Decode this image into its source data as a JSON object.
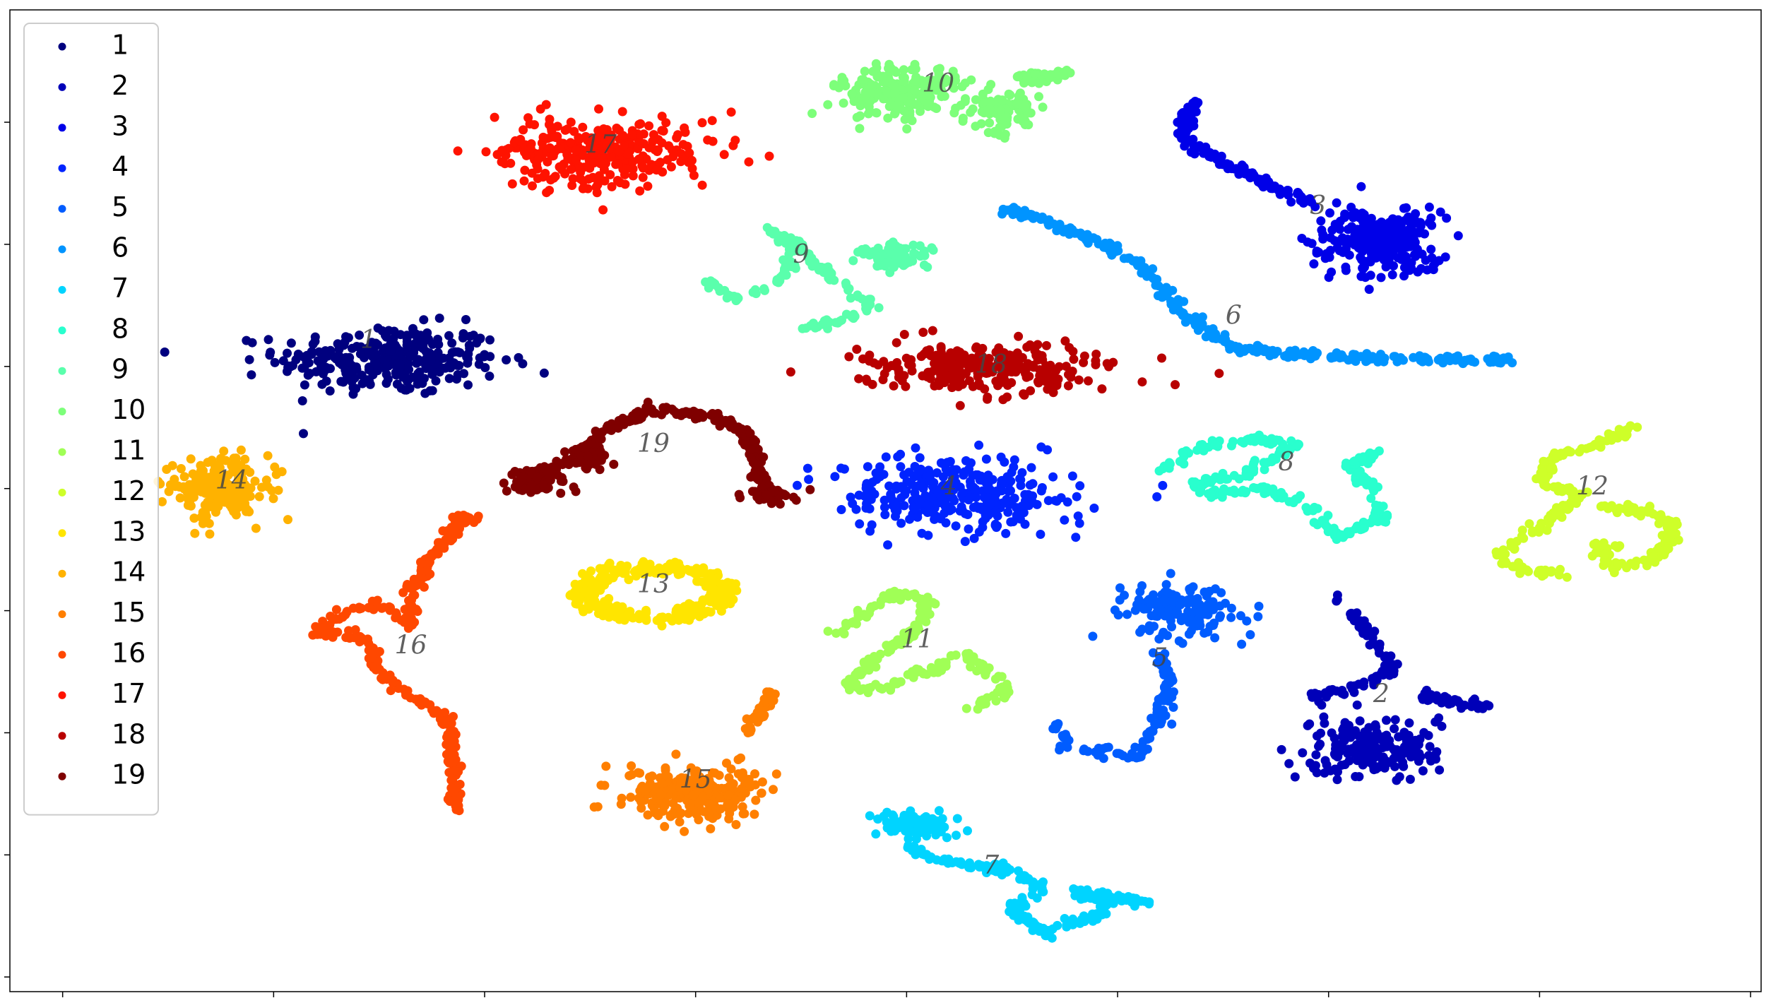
{
  "chart_data": {
    "type": "scatter",
    "title": "",
    "xlabel": "",
    "ylabel": "",
    "xlim": [
      -2.5,
      80.5
    ],
    "ylim": [
      -1.2,
      79.2
    ],
    "grid": false,
    "legend_position": "top-left",
    "x_tick_values": [
      0,
      10,
      20,
      30,
      40,
      50,
      60,
      70,
      80
    ],
    "y_tick_values": [
      0,
      10,
      20,
      30,
      40,
      50,
      60,
      70
    ],
    "series": [
      {
        "name": "1",
        "color": "#00007f",
        "label_x": 14.5,
        "label_y": 52.0,
        "clusters": [
          {
            "type": "blob",
            "center": [
              15.5,
              50.5
            ],
            "spread": [
              4.8,
              2.6
            ],
            "n": 300
          }
        ]
      },
      {
        "name": "2",
        "color": "#0000b8",
        "label_x": 62.5,
        "label_y": 23.0,
        "clusters": [
          {
            "type": "path",
            "points": [
              [
                60.5,
                31
              ],
              [
                62,
                28
              ],
              [
                63,
                25
              ],
              [
                61,
                23.5
              ],
              [
                59,
                23
              ]
            ],
            "n": 90
          },
          {
            "type": "blob",
            "center": [
              62,
              18.8
            ],
            "spread": [
              2.8,
              2.1
            ],
            "n": 200
          },
          {
            "type": "path",
            "points": [
              [
                64.5,
                23
              ],
              [
                66,
                22.6
              ],
              [
                67.5,
                22
              ]
            ],
            "n": 45
          }
        ]
      },
      {
        "name": "3",
        "color": "#0000e8",
        "label_x": 59.5,
        "label_y": 63.0,
        "clusters": [
          {
            "type": "path",
            "points": [
              [
                53.5,
                71.5
              ],
              [
                53,
                69
              ],
              [
                54.5,
                67
              ],
              [
                57,
                65
              ],
              [
                59.5,
                63
              ]
            ],
            "n": 130
          },
          {
            "type": "blob",
            "center": [
              62.5,
              60.3
            ],
            "spread": [
              2.7,
              2.6
            ],
            "n": 280
          }
        ]
      },
      {
        "name": "4",
        "color": "#0024ff",
        "label_x": 42.0,
        "label_y": 40.0,
        "clusters": [
          {
            "type": "blob",
            "center": [
              42,
              39.5
            ],
            "spread": [
              4.7,
              2.8
            ],
            "n": 330
          }
        ]
      },
      {
        "name": "5",
        "color": "#005cff",
        "label_x": 52.0,
        "label_y": 26.0,
        "clusters": [
          {
            "type": "blob",
            "center": [
              53,
              30
            ],
            "spread": [
              2.5,
              2.1
            ],
            "n": 150
          },
          {
            "type": "path",
            "points": [
              [
                52,
                27
              ],
              [
                52.5,
                24
              ],
              [
                52,
                21
              ],
              [
                51,
                18
              ],
              [
                49,
                18.5
              ],
              [
                47.5,
                19
              ],
              [
                47,
                21
              ]
            ],
            "n": 110
          }
        ]
      },
      {
        "name": "6",
        "color": "#0094ff",
        "label_x": 55.5,
        "label_y": 54.0,
        "clusters": [
          {
            "type": "path",
            "points": [
              [
                44.5,
                63
              ],
              [
                48,
                61
              ],
              [
                51,
                58.5
              ],
              [
                53,
                54.5
              ],
              [
                55.5,
                51.5
              ],
              [
                60,
                50.8
              ],
              [
                68.5,
                50.5
              ]
            ],
            "n": 320
          }
        ]
      },
      {
        "name": "7",
        "color": "#00d4ff",
        "label_x": 44.0,
        "label_y": 9.0,
        "clusters": [
          {
            "type": "blob",
            "center": [
              40.5,
              12.5
            ],
            "spread": [
              1.9,
              1.0
            ],
            "n": 80
          },
          {
            "type": "path",
            "points": [
              [
                40,
                10.5
              ],
              [
                42,
                9.3
              ],
              [
                44.5,
                9
              ],
              [
                46.5,
                7.5
              ],
              [
                45,
                5.5
              ],
              [
                46.5,
                3.7
              ],
              [
                49,
                5
              ],
              [
                49.5,
                6.2
              ],
              [
                48,
                7
              ],
              [
                51.5,
                6
              ]
            ],
            "n": 220
          }
        ]
      },
      {
        "name": "8",
        "color": "#29ffce",
        "label_x": 58.0,
        "label_y": 42.0,
        "clusters": [
          {
            "type": "path",
            "points": [
              [
                52,
                41.5
              ],
              [
                54,
                43.5
              ],
              [
                56.5,
                44
              ],
              [
                58.5,
                43.5
              ],
              [
                56,
                41
              ],
              [
                53.5,
                40.5
              ],
              [
                54,
                39.5
              ],
              [
                57,
                40
              ],
              [
                59,
                38.5
              ],
              [
                60.5,
                36
              ],
              [
                62.5,
                37.5
              ],
              [
                62,
                40
              ],
              [
                61,
                42
              ],
              [
                62.5,
                43
              ]
            ],
            "n": 260
          }
        ]
      },
      {
        "name": "9",
        "color": "#5affac",
        "label_x": 35.0,
        "label_y": 59.0,
        "clusters": [
          {
            "type": "path",
            "points": [
              [
                30.5,
                57
              ],
              [
                32,
                55.5
              ],
              [
                34,
                57
              ],
              [
                35,
                60
              ],
              [
                33.5,
                61
              ],
              [
                36,
                58
              ],
              [
                37.5,
                56
              ],
              [
                38.5,
                55
              ],
              [
                36.5,
                53.5
              ],
              [
                35,
                53.2
              ]
            ],
            "n": 160
          },
          {
            "type": "blob",
            "center": [
              39.5,
              59
            ],
            "spread": [
              1.6,
              1.0
            ],
            "n": 70
          }
        ]
      },
      {
        "name": "10",
        "color": "#7dff7a",
        "label_x": 41.5,
        "label_y": 73.0,
        "clusters": [
          {
            "type": "blob",
            "center": [
              39.5,
              72.5
            ],
            "spread": [
              2.8,
              1.8
            ],
            "n": 200
          },
          {
            "type": "blob",
            "center": [
              44.5,
              71
            ],
            "spread": [
              1.8,
              1.5
            ],
            "n": 90
          },
          {
            "type": "path",
            "points": [
              [
                45.5,
                73.5
              ],
              [
                47.5,
                74
              ]
            ],
            "n": 60
          }
        ]
      },
      {
        "name": "11",
        "color": "#a0ff56",
        "label_x": 40.5,
        "label_y": 27.5,
        "clusters": [
          {
            "type": "path",
            "points": [
              [
                36.5,
                28
              ],
              [
                38,
                30
              ],
              [
                39.5,
                31.5
              ],
              [
                41,
                30.8
              ],
              [
                40.5,
                28.5
              ],
              [
                38.5,
                26
              ],
              [
                37,
                24
              ],
              [
                39,
                23.5
              ],
              [
                40,
                25
              ],
              [
                41.5,
                25
              ],
              [
                42.5,
                26.5
              ],
              [
                44,
                25
              ],
              [
                45,
                23.5
              ],
              [
                43,
                22
              ]
            ],
            "n": 220
          }
        ]
      },
      {
        "name": "12",
        "color": "#ceff29",
        "label_x": 72.5,
        "label_y": 40.0,
        "clusters": [
          {
            "type": "path",
            "points": [
              [
                74.5,
                45
              ],
              [
                72.5,
                43.5
              ],
              [
                70.5,
                42.5
              ],
              [
                70,
                40.5
              ],
              [
                72,
                39.5
              ],
              [
                70,
                37
              ],
              [
                68,
                34.5
              ],
              [
                69.5,
                33
              ],
              [
                71.5,
                33
              ]
            ],
            "n": 170
          },
          {
            "type": "path",
            "points": [
              [
                73,
                38.5
              ],
              [
                75,
                38.2
              ],
              [
                76.5,
                37
              ],
              [
                75.5,
                34.2
              ],
              [
                73.5,
                33.5
              ],
              [
                72.5,
                35.3
              ],
              [
                74,
                35.5
              ]
            ],
            "n": 120
          }
        ]
      },
      {
        "name": "13",
        "color": "#ffe500",
        "label_x": 28.0,
        "label_y": 32.0,
        "clusters": [
          {
            "type": "ring",
            "center": [
              28,
              31.5
            ],
            "spread": [
              3.6,
              2.2
            ],
            "n": 320
          }
        ]
      },
      {
        "name": "14",
        "color": "#ffb200",
        "label_x": 8.0,
        "label_y": 40.5,
        "clusters": [
          {
            "type": "blob",
            "center": [
              7.5,
              40
            ],
            "spread": [
              2.1,
              2.4
            ],
            "n": 230
          }
        ]
      },
      {
        "name": "15",
        "color": "#ff7f00",
        "label_x": 30.0,
        "label_y": 16.0,
        "clusters": [
          {
            "type": "blob",
            "center": [
              30,
              15
            ],
            "spread": [
              3.0,
              2.1
            ],
            "n": 280
          },
          {
            "type": "path",
            "points": [
              [
                32.5,
                20
              ],
              [
                33,
                21.5
              ],
              [
                33.5,
                23.5
              ]
            ],
            "n": 40
          }
        ]
      },
      {
        "name": "16",
        "color": "#ff4800",
        "label_x": 16.5,
        "label_y": 27.0,
        "clusters": [
          {
            "type": "path",
            "points": [
              [
                19,
                37.5
              ],
              [
                17.5,
                34.5
              ],
              [
                16.5,
                31.5
              ],
              [
                16.5,
                29
              ],
              [
                15.5,
                30.2
              ],
              [
                14.5,
                30.5
              ],
              [
                13,
                29.5
              ],
              [
                12,
                28
              ],
              [
                13.5,
                28.2
              ],
              [
                14.5,
                27.5
              ],
              [
                15,
                25
              ],
              [
                16.5,
                23
              ],
              [
                18,
                21.5
              ],
              [
                18.5,
                19
              ],
              [
                18.5,
                16
              ],
              [
                18.7,
                13.5
              ]
            ],
            "n": 300
          },
          {
            "type": "blob",
            "center": [
              19,
              37.5
            ],
            "spread": [
              0.5,
              0.4
            ],
            "n": 25
          }
        ]
      },
      {
        "name": "17",
        "color": "#ff1300",
        "label_x": 25.5,
        "label_y": 68.0,
        "clusters": [
          {
            "type": "blob",
            "center": [
              25.5,
              67.5
            ],
            "spread": [
              4.2,
              2.6
            ],
            "n": 320
          }
        ]
      },
      {
        "name": "18",
        "color": "#b80000",
        "label_x": 44.0,
        "label_y": 50.0,
        "clusters": [
          {
            "type": "blob",
            "center": [
              44,
              50
            ],
            "spread": [
              5.2,
              1.9
            ],
            "n": 280
          }
        ]
      },
      {
        "name": "19",
        "color": "#7f0000",
        "label_x": 28.0,
        "label_y": 43.5,
        "clusters": [
          {
            "type": "path",
            "points": [
              [
                21.5,
                41
              ],
              [
                23,
                41.5
              ],
              [
                24.5,
                43
              ],
              [
                26,
                45
              ],
              [
                28,
                46.5
              ],
              [
                30.5,
                46
              ],
              [
                32.5,
                44.5
              ],
              [
                33,
                42
              ],
              [
                33,
                40.5
              ]
            ],
            "n": 220
          },
          {
            "type": "blob",
            "center": [
              22.5,
              40.5
            ],
            "spread": [
              1.2,
              0.8
            ],
            "n": 60
          },
          {
            "type": "blob",
            "center": [
              25,
              42.5
            ],
            "spread": [
              0.8,
              0.9
            ],
            "n": 40
          },
          {
            "type": "blob",
            "center": [
              33.5,
              39.5
            ],
            "spread": [
              1.0,
              0.6
            ],
            "n": 50
          }
        ]
      }
    ]
  }
}
